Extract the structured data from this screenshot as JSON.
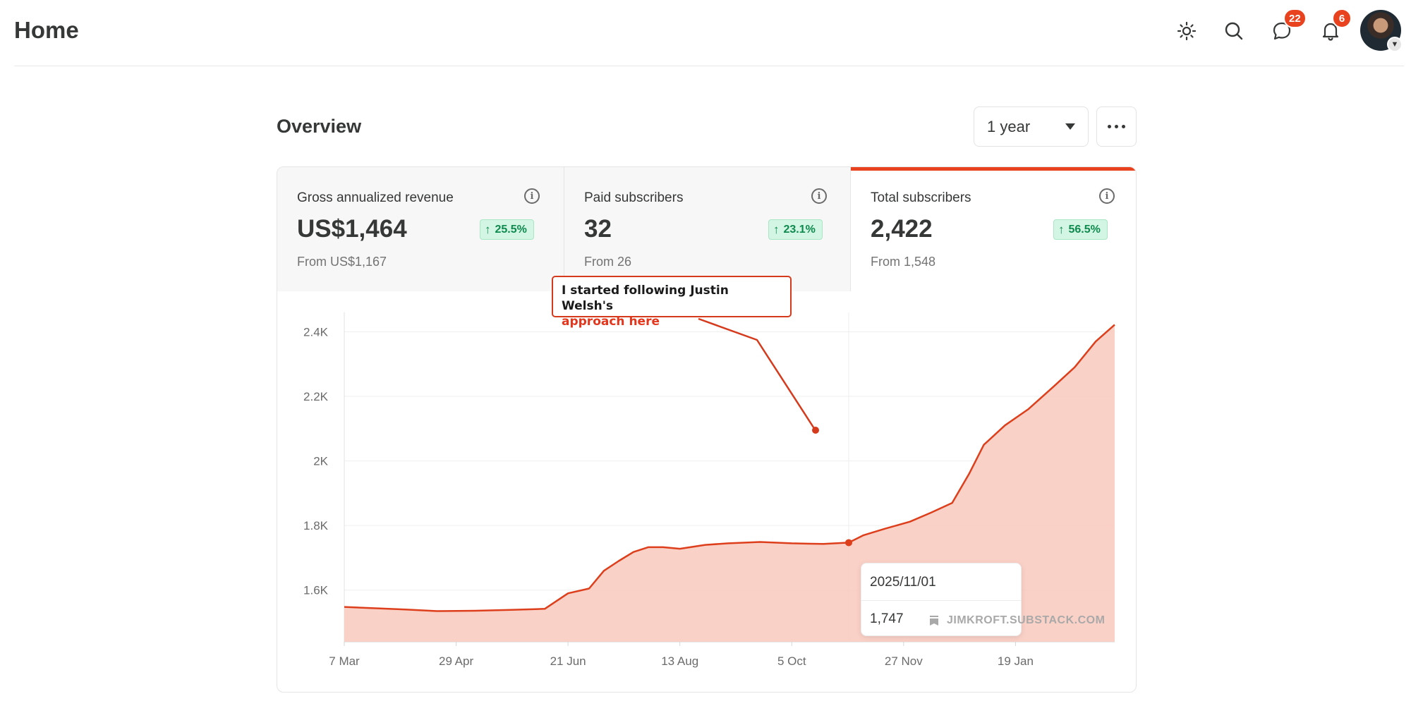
{
  "header": {
    "title": "Home",
    "icons": [
      "sun-icon",
      "search-icon",
      "chat-icon",
      "bell-icon"
    ],
    "chat_badge": "22",
    "notifications_badge": "6"
  },
  "overview": {
    "title": "Overview",
    "period": "1 year"
  },
  "stats": [
    {
      "label": "Gross annualized revenue",
      "value": "US$1,464",
      "delta": "25.5%",
      "from": "From US$1,167",
      "active": false
    },
    {
      "label": "Paid subscribers",
      "value": "32",
      "delta": "23.1%",
      "from": "From 26",
      "active": false
    },
    {
      "label": "Total subscribers",
      "value": "2,422",
      "delta": "56.5%",
      "from": "From 1,548",
      "active": true
    }
  ],
  "colors": {
    "accent": "#e8421f",
    "positive_text": "#0d8a4e",
    "positive_bg": "#d3f5e3",
    "area_fill": "#f9c9bd"
  },
  "tooltip": {
    "date": "2025/11/01",
    "value": "1,747"
  },
  "watermark": "JIMKROFT.SUBSTACK.COM",
  "callout": {
    "line1": "I started following Justin Welsh's",
    "line2": "approach here"
  },
  "chart_data": {
    "type": "area",
    "y_ticks": [
      "1.6K",
      "1.8K",
      "2K",
      "2.2K",
      "2.4K"
    ],
    "x_ticks": [
      "7 Mar",
      "29 Apr",
      "21 Jun",
      "13 Aug",
      "5 Oct",
      "27 Nov",
      "19 Jan"
    ],
    "ylim": [
      1440,
      2460
    ],
    "x": [
      "2025-03-07",
      "2025-03-24",
      "2025-04-05",
      "2025-04-20",
      "2025-05-08",
      "2025-05-25",
      "2025-06-10",
      "2025-06-21",
      "2025-07-01",
      "2025-07-08",
      "2025-07-15",
      "2025-07-22",
      "2025-07-29",
      "2025-08-05",
      "2025-08-13",
      "2025-08-25",
      "2025-09-05",
      "2025-09-20",
      "2025-10-05",
      "2025-10-20",
      "2025-11-01",
      "2025-11-08",
      "2025-11-18",
      "2025-11-30",
      "2025-12-10",
      "2025-12-20",
      "2025-12-28",
      "2026-01-04",
      "2026-01-14",
      "2026-01-25",
      "2026-02-06",
      "2026-02-16",
      "2026-02-26",
      "2026-03-07"
    ],
    "values": [
      1548,
      1543,
      1540,
      1535,
      1536,
      1539,
      1542,
      1590,
      1605,
      1660,
      1690,
      1718,
      1733,
      1733,
      1728,
      1740,
      1745,
      1749,
      1745,
      1743,
      1747,
      1770,
      1790,
      1812,
      1840,
      1870,
      1960,
      2050,
      2110,
      2160,
      2230,
      2290,
      2370,
      2422
    ],
    "highlight": {
      "date": "2025-11-01",
      "value": 1747
    },
    "grid": true,
    "legend": "none"
  }
}
